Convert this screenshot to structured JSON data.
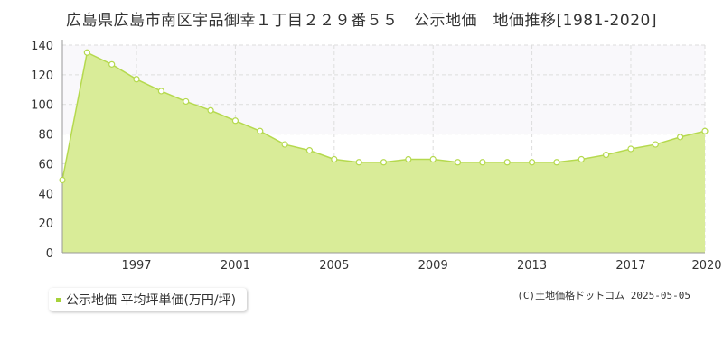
{
  "chart_data": {
    "type": "area",
    "title": "広島県広島市南区宇品御幸１丁目２２９番５５　公示地価　地価推移[1981-2020]",
    "xlabel": "",
    "ylabel": "",
    "x": [
      1994,
      1995,
      1996,
      1997,
      1998,
      1999,
      2000,
      2001,
      2002,
      2003,
      2004,
      2005,
      2006,
      2007,
      2008,
      2009,
      2010,
      2011,
      2012,
      2013,
      2014,
      2015,
      2016,
      2017,
      2018,
      2019,
      2020
    ],
    "x_tick_labels": [
      "1997",
      "2001",
      "2005",
      "2009",
      "2013",
      "2017",
      "2020"
    ],
    "x_tick_values": [
      1997,
      2001,
      2005,
      2009,
      2013,
      2017,
      2020
    ],
    "ylim": [
      0,
      140
    ],
    "y_tick_values": [
      0,
      20,
      40,
      60,
      80,
      100,
      120,
      140
    ],
    "y_tick_labels": [
      "0",
      "20",
      "40",
      "60",
      "80",
      "100",
      "120",
      "140"
    ],
    "grid": true,
    "series": [
      {
        "name": "公示地価 平均坪単価(万円/坪)",
        "values": [
          49,
          135,
          127,
          117,
          109,
          102,
          96,
          89,
          82,
          73,
          69,
          63,
          61,
          61,
          63,
          63,
          61,
          61,
          61,
          61,
          61,
          63,
          66,
          70,
          73,
          78,
          82
        ]
      }
    ]
  },
  "legend": {
    "label": "公示地価 平均坪単価(万円/坪)"
  },
  "copyright": "(C)土地価格ドットコム 2025-05-05",
  "colors": {
    "area_fill": "#d9ec98",
    "line": "#b5d94e",
    "legend_marker": "#a6d23a",
    "marker_fill": "#ffffff",
    "grid": "#dddddd",
    "axis": "#999999",
    "upper_band": "#f9f8fb"
  }
}
